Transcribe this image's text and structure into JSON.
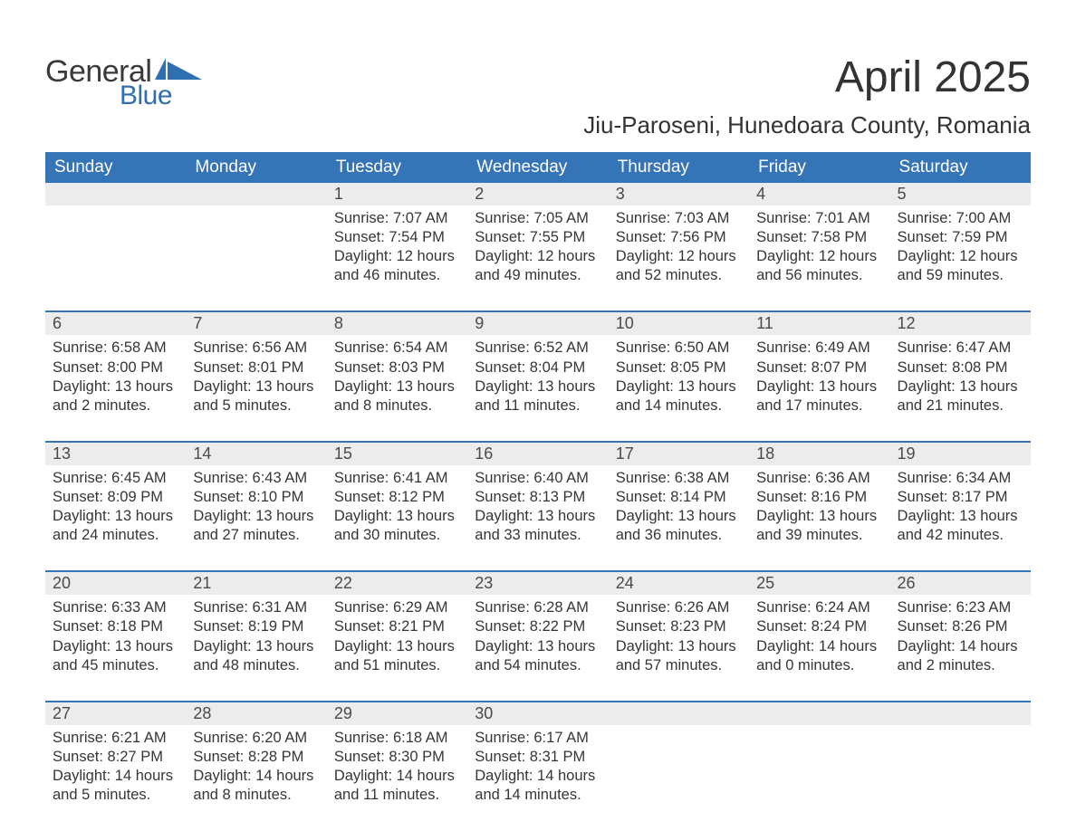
{
  "logo": {
    "text1": "General",
    "text2": "Blue",
    "flag_color": "#2f6fb0"
  },
  "title": "April 2025",
  "location": "Jiu-Paroseni, Hunedoara County, Romania",
  "colors": {
    "header_bg": "#3574b7",
    "header_text": "#ffffff",
    "daynum_bg": "#ececec",
    "row_border": "#3574b7",
    "body_text": "#363636",
    "page_bg": "#ffffff"
  },
  "typography": {
    "title_fontsize": 48,
    "location_fontsize": 26,
    "dayheader_fontsize": 19,
    "daynum_fontsize": 18,
    "detail_fontsize": 16.5
  },
  "day_headers": [
    "Sunday",
    "Monday",
    "Tuesday",
    "Wednesday",
    "Thursday",
    "Friday",
    "Saturday"
  ],
  "weeks": [
    [
      null,
      null,
      {
        "n": "1",
        "sr": "7:07 AM",
        "ss": "7:54 PM",
        "dl": "12 hours and 46 minutes."
      },
      {
        "n": "2",
        "sr": "7:05 AM",
        "ss": "7:55 PM",
        "dl": "12 hours and 49 minutes."
      },
      {
        "n": "3",
        "sr": "7:03 AM",
        "ss": "7:56 PM",
        "dl": "12 hours and 52 minutes."
      },
      {
        "n": "4",
        "sr": "7:01 AM",
        "ss": "7:58 PM",
        "dl": "12 hours and 56 minutes."
      },
      {
        "n": "5",
        "sr": "7:00 AM",
        "ss": "7:59 PM",
        "dl": "12 hours and 59 minutes."
      }
    ],
    [
      {
        "n": "6",
        "sr": "6:58 AM",
        "ss": "8:00 PM",
        "dl": "13 hours and 2 minutes."
      },
      {
        "n": "7",
        "sr": "6:56 AM",
        "ss": "8:01 PM",
        "dl": "13 hours and 5 minutes."
      },
      {
        "n": "8",
        "sr": "6:54 AM",
        "ss": "8:03 PM",
        "dl": "13 hours and 8 minutes."
      },
      {
        "n": "9",
        "sr": "6:52 AM",
        "ss": "8:04 PM",
        "dl": "13 hours and 11 minutes."
      },
      {
        "n": "10",
        "sr": "6:50 AM",
        "ss": "8:05 PM",
        "dl": "13 hours and 14 minutes."
      },
      {
        "n": "11",
        "sr": "6:49 AM",
        "ss": "8:07 PM",
        "dl": "13 hours and 17 minutes."
      },
      {
        "n": "12",
        "sr": "6:47 AM",
        "ss": "8:08 PM",
        "dl": "13 hours and 21 minutes."
      }
    ],
    [
      {
        "n": "13",
        "sr": "6:45 AM",
        "ss": "8:09 PM",
        "dl": "13 hours and 24 minutes."
      },
      {
        "n": "14",
        "sr": "6:43 AM",
        "ss": "8:10 PM",
        "dl": "13 hours and 27 minutes."
      },
      {
        "n": "15",
        "sr": "6:41 AM",
        "ss": "8:12 PM",
        "dl": "13 hours and 30 minutes."
      },
      {
        "n": "16",
        "sr": "6:40 AM",
        "ss": "8:13 PM",
        "dl": "13 hours and 33 minutes."
      },
      {
        "n": "17",
        "sr": "6:38 AM",
        "ss": "8:14 PM",
        "dl": "13 hours and 36 minutes."
      },
      {
        "n": "18",
        "sr": "6:36 AM",
        "ss": "8:16 PM",
        "dl": "13 hours and 39 minutes."
      },
      {
        "n": "19",
        "sr": "6:34 AM",
        "ss": "8:17 PM",
        "dl": "13 hours and 42 minutes."
      }
    ],
    [
      {
        "n": "20",
        "sr": "6:33 AM",
        "ss": "8:18 PM",
        "dl": "13 hours and 45 minutes."
      },
      {
        "n": "21",
        "sr": "6:31 AM",
        "ss": "8:19 PM",
        "dl": "13 hours and 48 minutes."
      },
      {
        "n": "22",
        "sr": "6:29 AM",
        "ss": "8:21 PM",
        "dl": "13 hours and 51 minutes."
      },
      {
        "n": "23",
        "sr": "6:28 AM",
        "ss": "8:22 PM",
        "dl": "13 hours and 54 minutes."
      },
      {
        "n": "24",
        "sr": "6:26 AM",
        "ss": "8:23 PM",
        "dl": "13 hours and 57 minutes."
      },
      {
        "n": "25",
        "sr": "6:24 AM",
        "ss": "8:24 PM",
        "dl": "14 hours and 0 minutes."
      },
      {
        "n": "26",
        "sr": "6:23 AM",
        "ss": "8:26 PM",
        "dl": "14 hours and 2 minutes."
      }
    ],
    [
      {
        "n": "27",
        "sr": "6:21 AM",
        "ss": "8:27 PM",
        "dl": "14 hours and 5 minutes."
      },
      {
        "n": "28",
        "sr": "6:20 AM",
        "ss": "8:28 PM",
        "dl": "14 hours and 8 minutes."
      },
      {
        "n": "29",
        "sr": "6:18 AM",
        "ss": "8:30 PM",
        "dl": "14 hours and 11 minutes."
      },
      {
        "n": "30",
        "sr": "6:17 AM",
        "ss": "8:31 PM",
        "dl": "14 hours and 14 minutes."
      },
      null,
      null,
      null
    ]
  ],
  "labels": {
    "sunrise": "Sunrise: ",
    "sunset": "Sunset: ",
    "daylight": "Daylight: "
  }
}
